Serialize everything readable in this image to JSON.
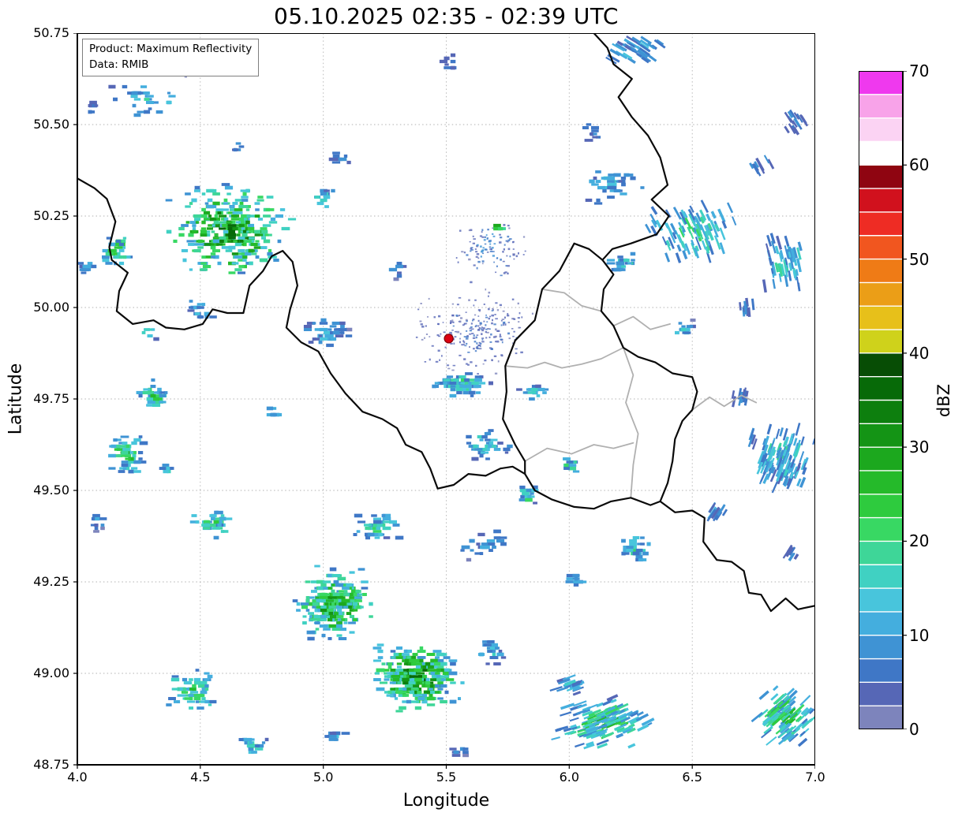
{
  "title": "05.10.2025 02:35 - 02:39 UTC",
  "info_box": {
    "product": "Product: Maximum Reflectivity",
    "source": "Data: RMIB"
  },
  "axes": {
    "xlabel": "Longitude",
    "ylabel": "Latitude",
    "xlim": [
      4.0,
      7.0
    ],
    "ylim": [
      48.75,
      50.75
    ],
    "xtick_values": [
      4.0,
      4.5,
      5.0,
      5.5,
      6.0,
      6.5,
      7.0
    ],
    "xtick_labels": [
      "4.0",
      "4.5",
      "5.0",
      "5.5",
      "6.0",
      "6.5",
      "7.0"
    ],
    "ytick_values": [
      50.75,
      50.5,
      50.25,
      50.0,
      49.75,
      49.5,
      49.25,
      49.0,
      48.75
    ],
    "ytick_labels": [
      "50.75",
      "50.50",
      "50.25",
      "50.00",
      "49.75",
      "49.50",
      "49.25",
      "49.00",
      "48.75"
    ],
    "grid": true
  },
  "colorbar": {
    "label": "dBZ",
    "min": 0,
    "max": 70,
    "tick_values": [
      0,
      10,
      20,
      30,
      40,
      50,
      60,
      70
    ],
    "tick_labels": [
      "0",
      "10",
      "20",
      "30",
      "40",
      "50",
      "60",
      "70"
    ],
    "segment_step": 2.5,
    "colors": [
      "#7d84bc",
      "#5667b6",
      "#3f77c6",
      "#3f93d4",
      "#44aede",
      "#48c5dc",
      "#40d1c2",
      "#3ed698",
      "#38d863",
      "#2ecb3e",
      "#25ba2a",
      "#1ca81e",
      "#149415",
      "#0d7f0e",
      "#076a08",
      "#074d05",
      "#cfd21b",
      "#e7c01a",
      "#eb9e17",
      "#ef7b16",
      "#f1561f",
      "#ee2c24",
      "#d1111d",
      "#8f0511",
      "#ffffff",
      "#fbd3f3",
      "#f8a3e9",
      "#ef39ee"
    ]
  },
  "colors": {
    "border_national": "#0a0a0a",
    "border_regional": "#b0b0b0",
    "grid": "#999999",
    "frame": "#000000",
    "radar_dot": "#dd0010",
    "radar_dot_edge": "#8a0008"
  },
  "chart_data": {
    "type": "heatmap",
    "title": "05.10.2025 02:35 - 02:39 UTC",
    "xlabel": "Longitude",
    "ylabel": "Latitude",
    "xlim": [
      4.0,
      7.0
    ],
    "ylim": [
      48.75,
      50.75
    ],
    "units": "dBZ",
    "value_range": [
      0,
      70
    ],
    "radar_site": {
      "lon": 5.51,
      "lat": 49.915
    },
    "echo_clusters": [
      {
        "lon": 4.28,
        "lat": 50.57,
        "w": 0.34,
        "h": 0.1,
        "n": 30,
        "dbz": 18,
        "style": "block"
      },
      {
        "lon": 4.06,
        "lat": 50.55,
        "w": 0.07,
        "h": 0.06,
        "n": 6,
        "dbz": 10,
        "style": "block"
      },
      {
        "lon": 4.42,
        "lat": 50.64,
        "w": 0.1,
        "h": 0.05,
        "n": 6,
        "dbz": 3,
        "style": "fine"
      },
      {
        "lon": 5.52,
        "lat": 50.66,
        "w": 0.14,
        "h": 0.08,
        "n": 8,
        "dbz": 8,
        "style": "block"
      },
      {
        "lon": 6.28,
        "lat": 50.7,
        "w": 0.32,
        "h": 0.1,
        "n": 42,
        "dbz": 15,
        "style": "streak"
      },
      {
        "lon": 6.92,
        "lat": 50.51,
        "w": 0.14,
        "h": 0.1,
        "n": 18,
        "dbz": 12,
        "style": "streak"
      },
      {
        "lon": 6.78,
        "lat": 50.39,
        "w": 0.18,
        "h": 0.08,
        "n": 10,
        "dbz": 10,
        "style": "streak"
      },
      {
        "lon": 6.5,
        "lat": 50.21,
        "w": 0.46,
        "h": 0.2,
        "n": 95,
        "dbz": 22,
        "style": "streak"
      },
      {
        "lon": 6.88,
        "lat": 50.12,
        "w": 0.24,
        "h": 0.18,
        "n": 55,
        "dbz": 20,
        "style": "streak"
      },
      {
        "lon": 6.18,
        "lat": 50.34,
        "w": 0.3,
        "h": 0.14,
        "n": 40,
        "dbz": 15,
        "style": "block"
      },
      {
        "lon": 6.1,
        "lat": 50.48,
        "w": 0.1,
        "h": 0.08,
        "n": 10,
        "dbz": 10,
        "style": "block"
      },
      {
        "lon": 4.62,
        "lat": 50.21,
        "w": 0.58,
        "h": 0.3,
        "n": 310,
        "dbz": 36,
        "style": "block"
      },
      {
        "lon": 4.16,
        "lat": 50.16,
        "w": 0.16,
        "h": 0.12,
        "n": 35,
        "dbz": 24,
        "style": "block"
      },
      {
        "lon": 4.04,
        "lat": 50.11,
        "w": 0.08,
        "h": 0.08,
        "n": 12,
        "dbz": 14,
        "style": "block"
      },
      {
        "lon": 4.5,
        "lat": 49.99,
        "w": 0.14,
        "h": 0.08,
        "n": 15,
        "dbz": 16,
        "style": "block"
      },
      {
        "lon": 5.0,
        "lat": 50.3,
        "w": 0.14,
        "h": 0.08,
        "n": 14,
        "dbz": 18,
        "style": "block"
      },
      {
        "lon": 5.3,
        "lat": 50.1,
        "w": 0.1,
        "h": 0.06,
        "n": 8,
        "dbz": 10,
        "style": "block"
      },
      {
        "lon": 4.29,
        "lat": 49.93,
        "w": 0.08,
        "h": 0.05,
        "n": 8,
        "dbz": 22,
        "style": "block"
      },
      {
        "lon": 4.31,
        "lat": 49.76,
        "w": 0.16,
        "h": 0.09,
        "n": 35,
        "dbz": 26,
        "style": "block"
      },
      {
        "lon": 4.2,
        "lat": 49.6,
        "w": 0.18,
        "h": 0.13,
        "n": 60,
        "dbz": 28,
        "style": "block"
      },
      {
        "lon": 4.36,
        "lat": 49.56,
        "w": 0.07,
        "h": 0.05,
        "n": 10,
        "dbz": 18,
        "style": "block"
      },
      {
        "lon": 4.08,
        "lat": 49.41,
        "w": 0.08,
        "h": 0.06,
        "n": 10,
        "dbz": 12,
        "style": "block"
      },
      {
        "lon": 4.55,
        "lat": 49.41,
        "w": 0.24,
        "h": 0.1,
        "n": 45,
        "dbz": 24,
        "style": "block"
      },
      {
        "lon": 4.79,
        "lat": 49.71,
        "w": 0.08,
        "h": 0.05,
        "n": 8,
        "dbz": 16,
        "style": "block"
      },
      {
        "lon": 5.01,
        "lat": 49.93,
        "w": 0.24,
        "h": 0.1,
        "n": 50,
        "dbz": 14,
        "style": "block"
      },
      {
        "lon": 5.62,
        "lat": 49.93,
        "w": 0.58,
        "h": 0.28,
        "n": 240,
        "dbz": 7,
        "style": "fine"
      },
      {
        "lon": 5.68,
        "lat": 50.16,
        "w": 0.34,
        "h": 0.22,
        "n": 110,
        "dbz": 9,
        "style": "fine"
      },
      {
        "lon": 5.73,
        "lat": 50.22,
        "w": 0.1,
        "h": 0.04,
        "n": 6,
        "dbz": 38,
        "style": "block"
      },
      {
        "lon": 5.56,
        "lat": 49.79,
        "w": 0.3,
        "h": 0.07,
        "n": 90,
        "dbz": 22,
        "style": "block"
      },
      {
        "lon": 5.86,
        "lat": 49.77,
        "w": 0.14,
        "h": 0.05,
        "n": 20,
        "dbz": 16,
        "style": "block"
      },
      {
        "lon": 5.66,
        "lat": 49.62,
        "w": 0.24,
        "h": 0.12,
        "n": 40,
        "dbz": 18,
        "style": "block"
      },
      {
        "lon": 5.83,
        "lat": 49.49,
        "w": 0.1,
        "h": 0.07,
        "n": 25,
        "dbz": 26,
        "style": "block"
      },
      {
        "lon": 6.0,
        "lat": 49.57,
        "w": 0.1,
        "h": 0.06,
        "n": 15,
        "dbz": 22,
        "style": "block"
      },
      {
        "lon": 6.27,
        "lat": 49.34,
        "w": 0.14,
        "h": 0.09,
        "n": 35,
        "dbz": 22,
        "style": "block"
      },
      {
        "lon": 6.02,
        "lat": 49.26,
        "w": 0.12,
        "h": 0.07,
        "n": 18,
        "dbz": 14,
        "style": "block"
      },
      {
        "lon": 5.22,
        "lat": 49.4,
        "w": 0.24,
        "h": 0.1,
        "n": 40,
        "dbz": 20,
        "style": "block"
      },
      {
        "lon": 5.65,
        "lat": 49.35,
        "w": 0.26,
        "h": 0.12,
        "n": 25,
        "dbz": 12,
        "style": "block"
      },
      {
        "lon": 5.05,
        "lat": 49.19,
        "w": 0.36,
        "h": 0.22,
        "n": 280,
        "dbz": 33,
        "style": "block"
      },
      {
        "lon": 5.38,
        "lat": 48.99,
        "w": 0.44,
        "h": 0.22,
        "n": 330,
        "dbz": 36,
        "style": "block"
      },
      {
        "lon": 5.68,
        "lat": 49.06,
        "w": 0.14,
        "h": 0.08,
        "n": 25,
        "dbz": 16,
        "style": "block"
      },
      {
        "lon": 4.47,
        "lat": 48.95,
        "w": 0.26,
        "h": 0.13,
        "n": 70,
        "dbz": 26,
        "style": "block"
      },
      {
        "lon": 4.72,
        "lat": 48.8,
        "w": 0.16,
        "h": 0.07,
        "n": 25,
        "dbz": 20,
        "style": "block"
      },
      {
        "lon": 5.05,
        "lat": 48.83,
        "w": 0.1,
        "h": 0.06,
        "n": 14,
        "dbz": 14,
        "style": "block"
      },
      {
        "lon": 5.56,
        "lat": 48.79,
        "w": 0.08,
        "h": 0.05,
        "n": 8,
        "dbz": 12,
        "style": "block"
      },
      {
        "lon": 6.14,
        "lat": 48.86,
        "w": 0.48,
        "h": 0.18,
        "n": 175,
        "dbz": 26,
        "style": "streak"
      },
      {
        "lon": 6.0,
        "lat": 48.97,
        "w": 0.14,
        "h": 0.07,
        "n": 20,
        "dbz": 16,
        "style": "streak"
      },
      {
        "lon": 6.88,
        "lat": 48.88,
        "w": 0.3,
        "h": 0.2,
        "n": 120,
        "dbz": 26,
        "style": "streak"
      },
      {
        "lon": 6.86,
        "lat": 49.59,
        "w": 0.3,
        "h": 0.2,
        "n": 130,
        "dbz": 20,
        "style": "streak"
      },
      {
        "lon": 6.6,
        "lat": 49.44,
        "w": 0.1,
        "h": 0.05,
        "n": 12,
        "dbz": 12,
        "style": "streak"
      },
      {
        "lon": 6.9,
        "lat": 49.33,
        "w": 0.08,
        "h": 0.05,
        "n": 8,
        "dbz": 10,
        "style": "streak"
      },
      {
        "lon": 6.7,
        "lat": 49.75,
        "w": 0.14,
        "h": 0.06,
        "n": 10,
        "dbz": 8,
        "style": "streak"
      },
      {
        "lon": 6.46,
        "lat": 49.94,
        "w": 0.14,
        "h": 0.08,
        "n": 15,
        "dbz": 16,
        "style": "block"
      },
      {
        "lon": 6.22,
        "lat": 50.12,
        "w": 0.16,
        "h": 0.1,
        "n": 25,
        "dbz": 20,
        "style": "block"
      },
      {
        "lon": 6.72,
        "lat": 50.0,
        "w": 0.12,
        "h": 0.08,
        "n": 10,
        "dbz": 10,
        "style": "streak"
      },
      {
        "lon": 5.08,
        "lat": 50.41,
        "w": 0.12,
        "h": 0.07,
        "n": 8,
        "dbz": 8,
        "style": "block"
      },
      {
        "lon": 4.65,
        "lat": 50.44,
        "w": 0.08,
        "h": 0.05,
        "n": 6,
        "dbz": 10,
        "style": "block"
      }
    ],
    "borders": {
      "national": [
        [
          [
            4.0,
            50.353
          ],
          [
            4.07,
            50.326
          ],
          [
            4.12,
            50.297
          ],
          [
            4.155,
            50.235
          ],
          [
            4.13,
            50.165
          ],
          [
            4.14,
            50.13
          ],
          [
            4.205,
            50.095
          ],
          [
            4.17,
            50.045
          ],
          [
            4.16,
            49.99
          ],
          [
            4.225,
            49.955
          ],
          [
            4.31,
            49.965
          ],
          [
            4.36,
            49.945
          ],
          [
            4.435,
            49.94
          ],
          [
            4.51,
            49.955
          ],
          [
            4.55,
            49.995
          ],
          [
            4.61,
            49.985
          ],
          [
            4.675,
            49.985
          ],
          [
            4.7,
            50.06
          ],
          [
            4.755,
            50.1
          ],
          [
            4.79,
            50.14
          ],
          [
            4.835,
            50.155
          ],
          [
            4.875,
            50.125
          ],
          [
            4.895,
            50.06
          ],
          [
            4.865,
            49.995
          ],
          [
            4.85,
            49.945
          ],
          [
            4.91,
            49.905
          ],
          [
            4.98,
            49.88
          ],
          [
            5.03,
            49.82
          ],
          [
            5.09,
            49.765
          ],
          [
            5.16,
            49.715
          ],
          [
            5.24,
            49.695
          ],
          [
            5.3,
            49.67
          ],
          [
            5.335,
            49.625
          ],
          [
            5.4,
            49.605
          ],
          [
            5.435,
            49.56
          ],
          [
            5.465,
            49.505
          ],
          [
            5.53,
            49.515
          ],
          [
            5.59,
            49.545
          ],
          [
            5.66,
            49.54
          ],
          [
            5.72,
            49.56
          ],
          [
            5.77,
            49.565
          ],
          [
            5.82,
            49.545
          ]
        ],
        [
          [
            6.1,
            50.75
          ],
          [
            6.155,
            50.71
          ],
          [
            6.18,
            50.665
          ],
          [
            6.255,
            50.625
          ],
          [
            6.2,
            50.575
          ],
          [
            6.255,
            50.52
          ],
          [
            6.32,
            50.47
          ],
          [
            6.37,
            50.41
          ],
          [
            6.4,
            50.335
          ],
          [
            6.335,
            50.295
          ],
          [
            6.405,
            50.25
          ],
          [
            6.355,
            50.2
          ],
          [
            6.25,
            50.175
          ],
          [
            6.175,
            50.16
          ],
          [
            6.135,
            50.13
          ]
        ],
        [
          [
            6.02,
            50.175
          ],
          [
            6.08,
            50.16
          ],
          [
            6.135,
            50.13
          ],
          [
            6.18,
            50.09
          ],
          [
            6.14,
            50.05
          ],
          [
            6.13,
            49.99
          ],
          [
            6.18,
            49.95
          ],
          [
            6.22,
            49.89
          ],
          [
            6.28,
            49.865
          ],
          [
            6.35,
            49.85
          ],
          [
            6.42,
            49.82
          ],
          [
            6.5,
            49.81
          ],
          [
            6.52,
            49.77
          ],
          [
            6.5,
            49.72
          ],
          [
            6.46,
            49.69
          ],
          [
            6.43,
            49.64
          ],
          [
            6.42,
            49.58
          ],
          [
            6.4,
            49.52
          ],
          [
            6.37,
            49.47
          ],
          [
            6.33,
            49.46
          ],
          [
            6.25,
            49.48
          ],
          [
            6.17,
            49.47
          ],
          [
            6.1,
            49.45
          ],
          [
            6.02,
            49.455
          ],
          [
            5.93,
            49.475
          ],
          [
            5.86,
            49.5
          ],
          [
            5.82,
            49.545
          ],
          [
            5.82,
            49.58
          ],
          [
            5.78,
            49.625
          ],
          [
            5.73,
            49.695
          ],
          [
            5.745,
            49.77
          ],
          [
            5.74,
            49.84
          ],
          [
            5.78,
            49.91
          ],
          [
            5.86,
            49.965
          ],
          [
            5.89,
            50.05
          ],
          [
            5.96,
            50.1
          ],
          [
            6.02,
            50.175
          ]
        ],
        [
          [
            6.37,
            49.47
          ],
          [
            6.43,
            49.44
          ],
          [
            6.5,
            49.445
          ],
          [
            6.55,
            49.425
          ],
          [
            6.545,
            49.36
          ],
          [
            6.6,
            49.31
          ],
          [
            6.66,
            49.305
          ],
          [
            6.71,
            49.28
          ],
          [
            6.73,
            49.22
          ],
          [
            6.78,
            49.215
          ],
          [
            6.82,
            49.17
          ],
          [
            6.88,
            49.205
          ],
          [
            6.93,
            49.175
          ],
          [
            7.0,
            49.185
          ]
        ]
      ],
      "regional": [
        [
          [
            5.74,
            49.84
          ],
          [
            5.83,
            49.835
          ],
          [
            5.9,
            49.85
          ],
          [
            5.97,
            49.835
          ],
          [
            6.05,
            49.845
          ],
          [
            6.13,
            49.86
          ],
          [
            6.22,
            49.89
          ]
        ],
        [
          [
            6.22,
            49.89
          ],
          [
            6.26,
            49.815
          ],
          [
            6.23,
            49.74
          ],
          [
            6.28,
            49.655
          ],
          [
            6.26,
            49.57
          ],
          [
            6.25,
            49.48
          ]
        ],
        [
          [
            5.82,
            49.58
          ],
          [
            5.91,
            49.615
          ],
          [
            6.01,
            49.6
          ],
          [
            6.1,
            49.625
          ],
          [
            6.18,
            49.615
          ],
          [
            6.26,
            49.63
          ]
        ],
        [
          [
            6.5,
            49.72
          ],
          [
            6.57,
            49.755
          ],
          [
            6.63,
            49.73
          ],
          [
            6.7,
            49.76
          ],
          [
            6.76,
            49.74
          ]
        ],
        [
          [
            6.18,
            49.95
          ],
          [
            6.26,
            49.975
          ],
          [
            6.33,
            49.94
          ],
          [
            6.41,
            49.955
          ]
        ],
        [
          [
            5.89,
            50.05
          ],
          [
            5.98,
            50.04
          ],
          [
            6.05,
            50.005
          ],
          [
            6.13,
            49.99
          ]
        ]
      ]
    }
  }
}
